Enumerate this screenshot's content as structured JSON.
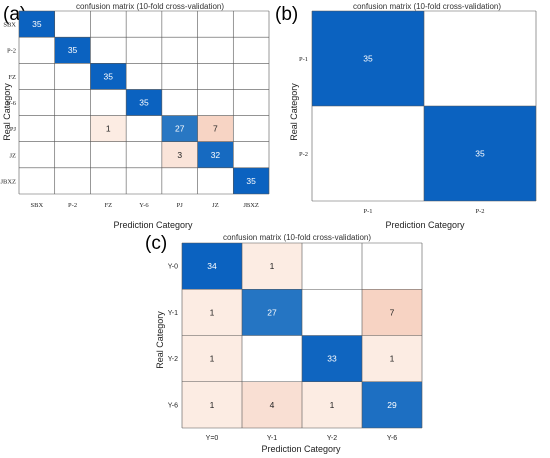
{
  "panels": [
    {
      "letter": "(a)",
      "chart_data": {
        "type": "heatmap",
        "title": "confusion matrix (10-fold cross-validation)",
        "xlabel": "Prediction Category",
        "ylabel": "Real Category",
        "row_labels": [
          "SBX",
          "P-2",
          "FZ",
          "Y-6",
          "PJ",
          "JZ",
          "JBXZ"
        ],
        "col_labels": [
          "SBX",
          "P-2",
          "FZ",
          "Y-6",
          "PJ",
          "JZ",
          "JBXZ"
        ],
        "values": [
          [
            35,
            0,
            0,
            0,
            0,
            0,
            0
          ],
          [
            0,
            35,
            0,
            0,
            0,
            0,
            0
          ],
          [
            0,
            0,
            35,
            0,
            0,
            0,
            0
          ],
          [
            0,
            0,
            0,
            35,
            0,
            0,
            0
          ],
          [
            0,
            0,
            1,
            0,
            27,
            7,
            0
          ],
          [
            0,
            0,
            0,
            0,
            3,
            32,
            0
          ],
          [
            0,
            0,
            0,
            0,
            0,
            0,
            35
          ]
        ]
      }
    },
    {
      "letter": "(b)",
      "chart_data": {
        "type": "heatmap",
        "title": "confusion matrix (10-fold cross-validation)",
        "xlabel": "Prediction Category",
        "ylabel": "Real Category",
        "row_labels": [
          "P-1",
          "P-2"
        ],
        "col_labels": [
          "P-1",
          "P-2"
        ],
        "values": [
          [
            35,
            0
          ],
          [
            0,
            35
          ]
        ]
      }
    },
    {
      "letter": "(c)",
      "chart_data": {
        "type": "heatmap",
        "title": "confusion matrix (10-fold cross-validation)",
        "xlabel": "Prediction Category",
        "ylabel": "Real Category",
        "row_labels": [
          "Y-0",
          "Y-1",
          "Y-2",
          "Y-6"
        ],
        "col_labels": [
          "Y=0",
          "Y-1",
          "Y-2",
          "Y-6"
        ],
        "values": [
          [
            34,
            1,
            0,
            0
          ],
          [
            1,
            27,
            0,
            7
          ],
          [
            1,
            0,
            33,
            1
          ],
          [
            1,
            4,
            1,
            29
          ]
        ]
      }
    }
  ],
  "colors": {
    "max_blue": "#0b62c0",
    "mid_blue": "#3d86c6",
    "light_peach": "#fdf0e8",
    "mid_peach": "#f6d0bf",
    "gridline": "#555555",
    "empty": "#ffffff"
  }
}
